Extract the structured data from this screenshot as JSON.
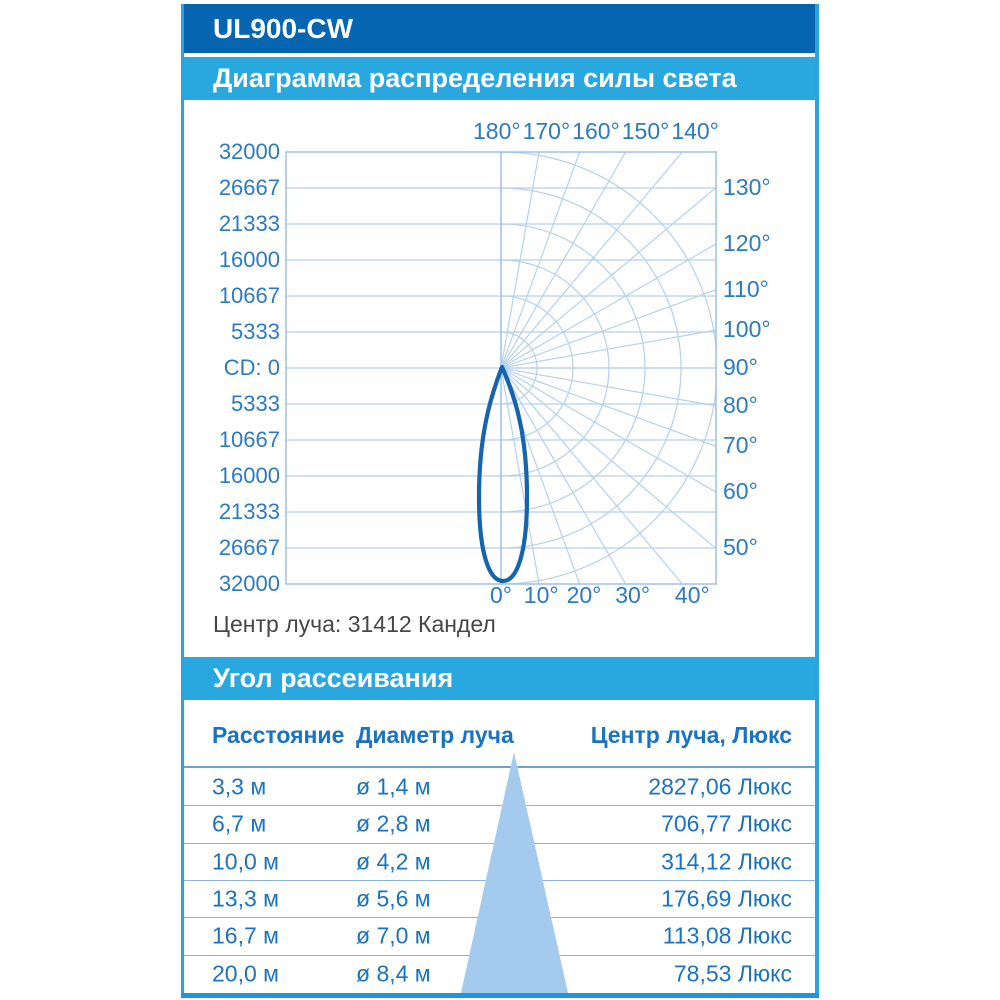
{
  "header": {
    "product": "UL900-CW"
  },
  "sections": {
    "chart_title": "Диаграмма распределения силы света",
    "beam_section_title": "Угол рассеивания"
  },
  "chart_data": {
    "type": "polar",
    "title": "Диаграмма распределения силы света",
    "units": "Кандела (CD)",
    "radial_axis": {
      "min": 0,
      "max": 32000,
      "ticks": [
        5333,
        10667,
        16000,
        21333,
        26667,
        32000
      ]
    },
    "left_axis_labels": [
      "32000",
      "26667",
      "21333",
      "16000",
      "10667",
      "5333",
      "CD: 0",
      "5333",
      "10667",
      "16000",
      "21333",
      "26667",
      "32000"
    ],
    "top_angle_labels": [
      "180°",
      "170°",
      "160°",
      "150°",
      "140°"
    ],
    "right_angle_labels": [
      "130°",
      "120°",
      "110°",
      "100°",
      "90°",
      "80°",
      "70°",
      "60°",
      "50°"
    ],
    "bottom_angle_labels": [
      "0°",
      "10°",
      "20°",
      "30°",
      "40°"
    ],
    "series": [
      {
        "name": "beam-intensity-lobe",
        "peak_candela": 31412,
        "peak_angle_deg": 0,
        "beam_full_angle_deg": 24
      }
    ],
    "caption": "Центр луча: 31412 Кандел"
  },
  "beam_table": {
    "section_title": "Угол рассеивания",
    "columns": [
      "Расстояние",
      "Диаметр луча",
      "Центр луча, Люкс"
    ],
    "rows": [
      [
        "3,3 м",
        "ø 1,4 м",
        "2827,06 Люкс"
      ],
      [
        "6,7 м",
        "ø 2,8 м",
        "706,77 Люкс"
      ],
      [
        "10,0 м",
        "ø 4,2 м",
        "314,12 Люкс"
      ],
      [
        "13,3 м",
        "ø 5,6 м",
        "176,69 Люкс"
      ],
      [
        "16,7 м",
        "ø 7,0 м",
        "113,08 Люкс"
      ],
      [
        "20,0 м",
        "ø 8,4 м",
        "78,53 Люкс"
      ]
    ]
  },
  "colors": {
    "header_dark_blue": "#0565b0",
    "header_light_blue": "#29a8e0",
    "frame_blue": "#2aa3e0",
    "grid_blue": "#b7d1ec",
    "axis_blue": "#9cc0e5",
    "beam_curve_blue": "#1565ae",
    "label_blue": "#2b7ac2",
    "table_text_blue": "#1a73c0",
    "cone_fill_blue": "#a4caed",
    "caption_gray": "#474747"
  }
}
